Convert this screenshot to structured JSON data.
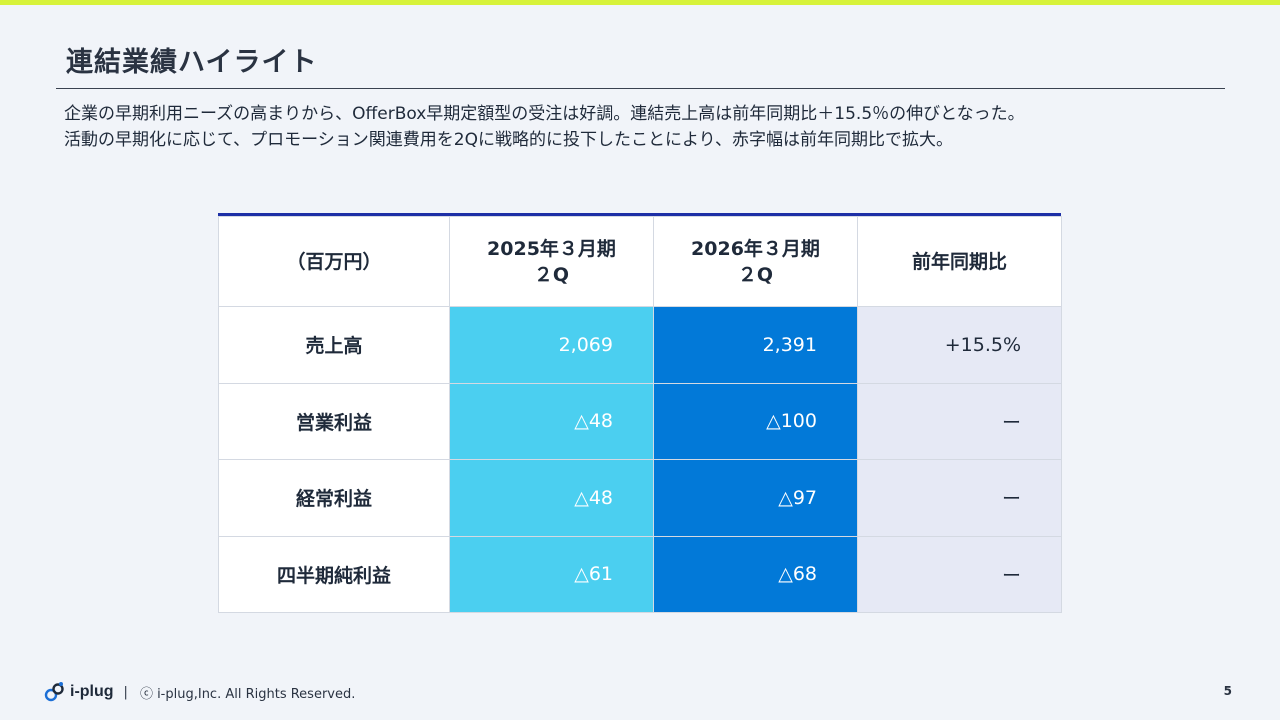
{
  "slide": {
    "title": "連結業績ハイライト",
    "summary_lines": [
      "企業の早期利用ニーズの高まりから、OfferBox早期定額型の受注は好調。連結売上高は前年同期比＋15.5％の伸びとなった。",
      "活動の早期化に応じて、プロモーション関連費用を2Qに戦略的に投下したことにより、赤字幅は前年同期比で拡大。"
    ]
  },
  "table": {
    "headers": {
      "unit": "（百万円）",
      "fy2025_line1": "2025年３月期",
      "fy2025_line2": "２Q",
      "fy2026_line1": "2026年３月期",
      "fy2026_line2": "２Q",
      "yoy": "前年同期比"
    },
    "rows": [
      {
        "label": "売上高",
        "fy2025": "2,069",
        "fy2026": "2,391",
        "yoy": "+15.5%"
      },
      {
        "label": "営業利益",
        "fy2025": "△48",
        "fy2026": "△100",
        "yoy": "ー"
      },
      {
        "label": "経常利益",
        "fy2025": "△48",
        "fy2026": "△97",
        "yoy": "ー"
      },
      {
        "label": "四半期純利益",
        "fy2025": "△61",
        "fy2026": "△68",
        "yoy": "ー"
      }
    ]
  },
  "footer": {
    "logo_text": "i-plug",
    "separator": "|",
    "copyright": "ⓒ i-plug,Inc. All Rights Reserved.",
    "page_number": "5"
  },
  "colors": {
    "accent_bar": "#d7f23a",
    "table_top_border": "#1d2fa6",
    "fy2025_fill": "#4bcff0",
    "fy2026_fill": "#0279d8",
    "yoy_fill": "#e6e9f5"
  }
}
